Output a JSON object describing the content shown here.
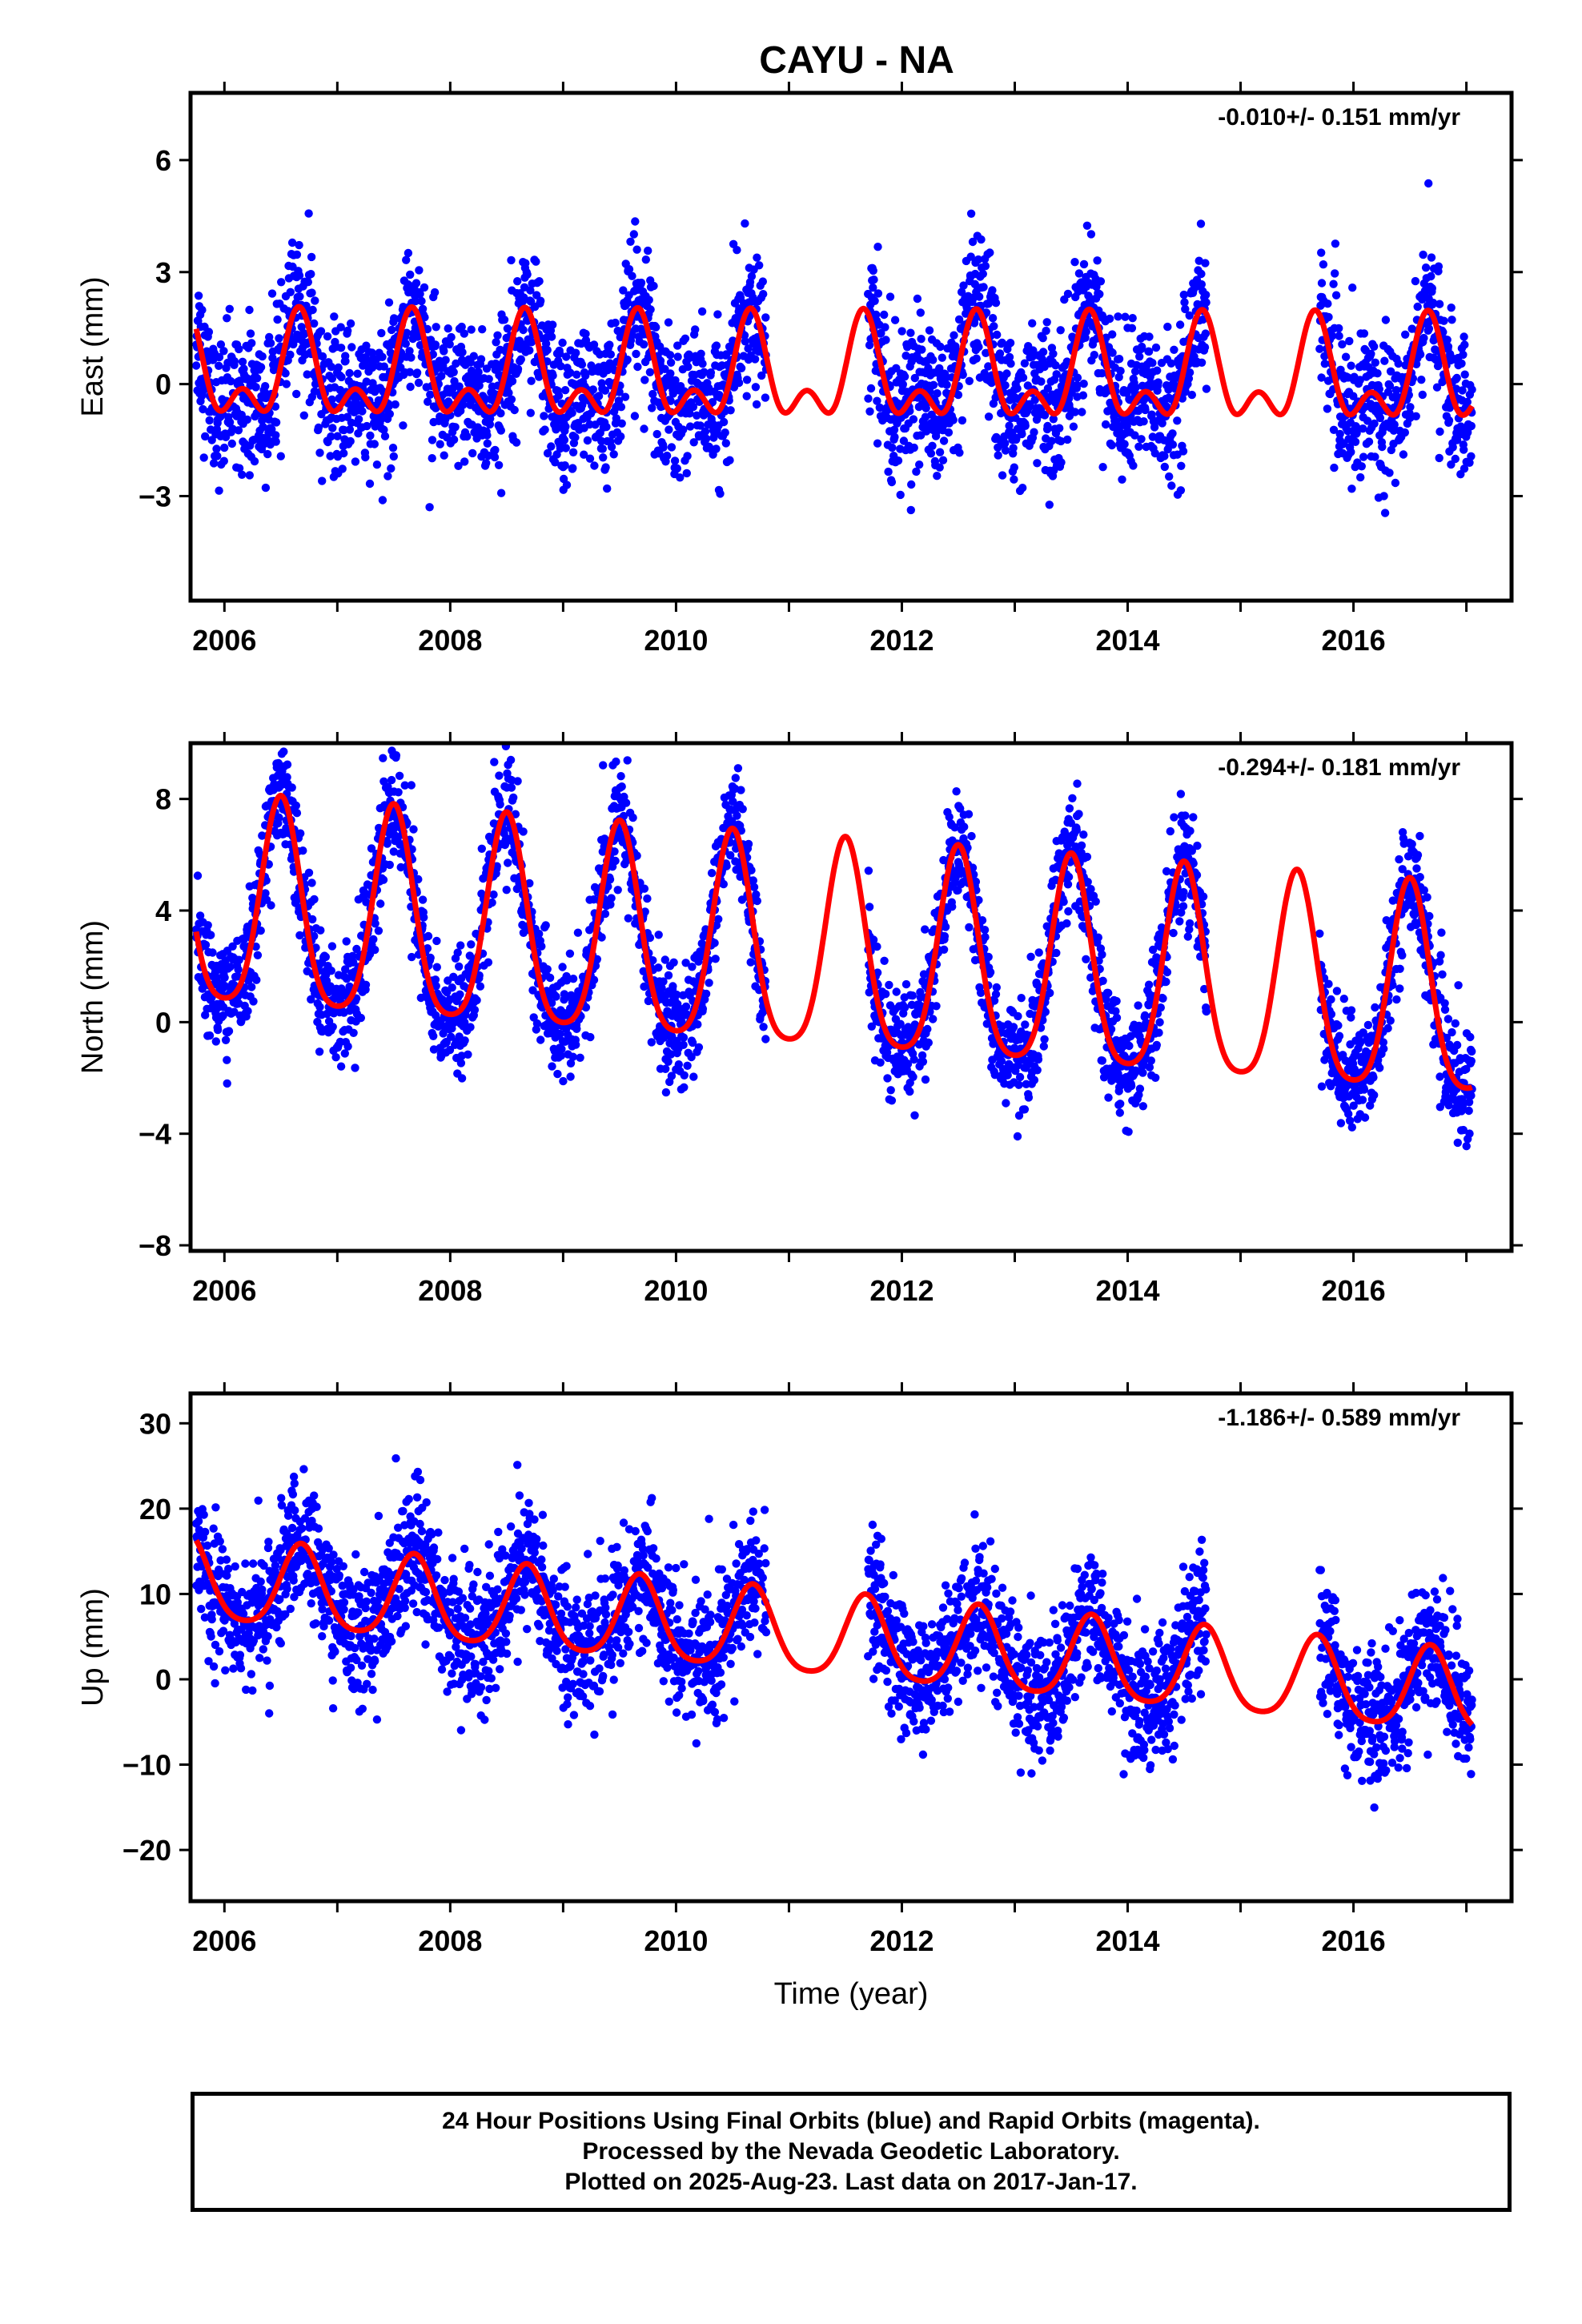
{
  "title": "CAYU - NA",
  "caption": {
    "line1": "24 Hour Positions Using Final Orbits (blue) and Rapid Orbits (magenta).",
    "line2": "Processed by the Nevada Geodetic Laboratory.",
    "line3": "Plotted on 2025-Aug-23. Last data on 2017-Jan-17."
  },
  "colors": {
    "observations": "#0000ff",
    "model": "#ff0000",
    "frame": "#000000"
  },
  "chart_data": [
    {
      "type": "scatter",
      "ylabel": "East (mm)",
      "xlabel": "",
      "xlim": [
        2005.7,
        2017.4
      ],
      "ylim": [
        -5.8,
        7.8
      ],
      "xticks": [
        "2006",
        "2008",
        "2010",
        "2012",
        "2014",
        "2016"
      ],
      "yticks": [
        -3,
        0,
        3,
        6
      ],
      "ytick_labels": [
        "−3",
        "0",
        "3",
        "6"
      ],
      "rate": "-0.010+/- 0.151 mm/yr",
      "series": [
        {
          "kind": "points",
          "color": "#0000ff",
          "segments": [
            [
              2005.75,
              2010.8
            ],
            [
              2011.7,
              2014.7
            ],
            [
              2015.7,
              2017.05
            ]
          ],
          "model_offset": 0,
          "noise_sd": 0.95
        },
        {
          "kind": "model",
          "color": "#ff0000",
          "x_range": [
            2005.75,
            2017.05
          ],
          "offset": 0.18,
          "trend": -0.01,
          "annual_amp": 1.1,
          "annual_peak": 2006.66,
          "semiannual_amp": 0.75,
          "semiannual_peak": 2006.66
        }
      ]
    },
    {
      "type": "scatter",
      "ylabel": "North (mm)",
      "xlabel": "",
      "xlim": [
        2005.7,
        2017.4
      ],
      "ylim": [
        -8.2,
        10.0
      ],
      "xticks": [
        "2006",
        "2008",
        "2010",
        "2012",
        "2014",
        "2016"
      ],
      "yticks": [
        -8,
        -4,
        0,
        4,
        8
      ],
      "ytick_labels": [
        "−8",
        "−4",
        "0",
        "4",
        "8"
      ],
      "rate": "-0.294+/- 0.181 mm/yr",
      "series": [
        {
          "kind": "points",
          "color": "#0000ff",
          "segments": [
            [
              2005.75,
              2010.8
            ],
            [
              2011.7,
              2014.7
            ],
            [
              2015.7,
              2017.05
            ]
          ],
          "model_offset": 0,
          "noise_sd": 1.0
        },
        {
          "kind": "model",
          "color": "#ff0000",
          "x_range": [
            2005.75,
            2017.05
          ],
          "offset": 2.4,
          "trend": -0.294,
          "annual_amp": 3.7,
          "annual_peak": 2006.5,
          "semiannual_amp": 0.7,
          "semiannual_peak": 2006.5
        }
      ]
    },
    {
      "type": "scatter",
      "ylabel": "Up (mm)",
      "xlabel": "Time (year)",
      "xlim": [
        2005.7,
        2017.4
      ],
      "ylim": [
        -26.0,
        33.5
      ],
      "xticks": [
        "2006",
        "2008",
        "2010",
        "2012",
        "2014",
        "2016"
      ],
      "yticks": [
        -20,
        -10,
        0,
        10,
        20,
        30
      ],
      "ytick_labels": [
        "−20",
        "−10",
        "0",
        "10",
        "20",
        "30"
      ],
      "rate": "-1.186+/- 0.589 mm/yr",
      "series": [
        {
          "kind": "points",
          "color": "#0000ff",
          "segments": [
            [
              2005.75,
              2010.8
            ],
            [
              2011.7,
              2014.7
            ],
            [
              2015.7,
              2017.05
            ]
          ],
          "model_offset": 0,
          "noise_sd": 3.8
        },
        {
          "kind": "model",
          "color": "#ff0000",
          "x_range": [
            2005.75,
            2017.05
          ],
          "offset": 5.2,
          "trend": -1.186,
          "annual_amp": 4.8,
          "annual_peak": 2006.68,
          "semiannual_amp": 0.8,
          "semiannual_peak": 2006.68
        }
      ]
    }
  ]
}
